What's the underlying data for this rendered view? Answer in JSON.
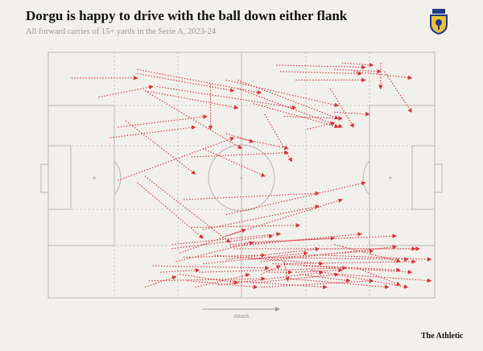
{
  "header": {
    "title": "Dorgu is happy to drive with the ball down either flank",
    "subtitle": "All forward carries of 15+ yards in the Serie A, 2023-24"
  },
  "pitch": {
    "attack_label": "Attack",
    "colors": {
      "background": "#f2f0ea",
      "pitch_lines": "#b9b5ad",
      "grid": "#c4c0b8",
      "carry": "#d9303a",
      "crest_blue": "#1f3a86",
      "crest_yellow": "#e8c23a"
    }
  },
  "brand": {
    "label": "The Athletic"
  },
  "crest": {
    "icon": "lecce-crest-icon"
  },
  "chart_data": {
    "type": "scatter",
    "title": "Dorgu is happy to drive with the ball down either flank",
    "subtitle": "All forward carries of 15+ yards in the Serie A, 2023-24",
    "xlabel": "Attack",
    "xlim": [
      0,
      100
    ],
    "ylim": [
      0,
      100
    ],
    "units": "percent of pitch length (x, toward attacking goal) and width (y, from top touchline)",
    "carries": [
      [
        6,
        12,
        23,
        12
      ],
      [
        13,
        21,
        27,
        16
      ],
      [
        23,
        8,
        55,
        19
      ],
      [
        23,
        10,
        48,
        18
      ],
      [
        25,
        18,
        49,
        26
      ],
      [
        28,
        16,
        64,
        26
      ],
      [
        18,
        35,
        41,
        30
      ],
      [
        16,
        40,
        38,
        35
      ],
      [
        20,
        32,
        38,
        57
      ],
      [
        25,
        18,
        50,
        45
      ],
      [
        18,
        60,
        48,
        40
      ],
      [
        42,
        15,
        42,
        36
      ],
      [
        46,
        13,
        75,
        25
      ],
      [
        49,
        13,
        75,
        31
      ],
      [
        49,
        17,
        76,
        35
      ],
      [
        53,
        24,
        75,
        35
      ],
      [
        59,
        6,
        82,
        7
      ],
      [
        60,
        9,
        81,
        10
      ],
      [
        64,
        13,
        82,
        13
      ],
      [
        73,
        17,
        79,
        35
      ],
      [
        76,
        5,
        84,
        6
      ],
      [
        79,
        9,
        94,
        12
      ],
      [
        87,
        9,
        94,
        28
      ],
      [
        86,
        5,
        86,
        17
      ],
      [
        74,
        8,
        86,
        9
      ],
      [
        74,
        28,
        83,
        29
      ],
      [
        56,
        29,
        63,
        51
      ],
      [
        61,
        30,
        76,
        31
      ],
      [
        67,
        36,
        74,
        33
      ],
      [
        46,
        38,
        53,
        42
      ],
      [
        49,
        40,
        62,
        45
      ],
      [
        37,
        49,
        62,
        47
      ],
      [
        40,
        45,
        56,
        58
      ],
      [
        23,
        61,
        40,
        87
      ],
      [
        25,
        58,
        47,
        89
      ],
      [
        35,
        69,
        70,
        66
      ],
      [
        46,
        76,
        82,
        61
      ],
      [
        40,
        83,
        70,
        72
      ],
      [
        46,
        86,
        76,
        69
      ],
      [
        37,
        82,
        65,
        81
      ],
      [
        32,
        90,
        60,
        85
      ],
      [
        32,
        92,
        58,
        86
      ],
      [
        47,
        90,
        74,
        87
      ],
      [
        46,
        97,
        70,
        92
      ],
      [
        34,
        94,
        51,
        83
      ],
      [
        33,
        98,
        53,
        89
      ],
      [
        35,
        96,
        56,
        95
      ],
      [
        40,
        99,
        67,
        94
      ],
      [
        43,
        95,
        71,
        99
      ],
      [
        47,
        91,
        81,
        85
      ],
      [
        48,
        92,
        95,
        92
      ],
      [
        51,
        89,
        90,
        86
      ],
      [
        52,
        97,
        84,
        93
      ],
      [
        55,
        98,
        90,
        91
      ],
      [
        57,
        96,
        93,
        97
      ],
      [
        58,
        99,
        91,
        102
      ],
      [
        61,
        99,
        95,
        98
      ],
      [
        66,
        100,
        94,
        103
      ],
      [
        68,
        102,
        93,
        110
      ],
      [
        65,
        104,
        78,
        107
      ],
      [
        62,
        106,
        88,
        110
      ],
      [
        53,
        108,
        75,
        104
      ],
      [
        55,
        110,
        84,
        107
      ],
      [
        44,
        109,
        71,
        103
      ],
      [
        47,
        107,
        72,
        110
      ],
      [
        34,
        104,
        49,
        108
      ],
      [
        36,
        107,
        54,
        110
      ],
      [
        38,
        110,
        52,
        104
      ],
      [
        69,
        92,
        96,
        92
      ],
      [
        74,
        90,
        91,
        98
      ],
      [
        71,
        95,
        99,
        97
      ],
      [
        39,
        103,
        77,
        101
      ],
      [
        76,
        104,
        99,
        107
      ],
      [
        80,
        101,
        91,
        109
      ],
      [
        25,
        110,
        33,
        105
      ],
      [
        26,
        107,
        56,
        106
      ],
      [
        29,
        103,
        39,
        102
      ],
      [
        27,
        100,
        57,
        101
      ],
      [
        55,
        104,
        60,
        100
      ],
      [
        61,
        98,
        62,
        107
      ],
      [
        57,
        103,
        63,
        103
      ],
      [
        64,
        103,
        76,
        102
      ]
    ]
  }
}
